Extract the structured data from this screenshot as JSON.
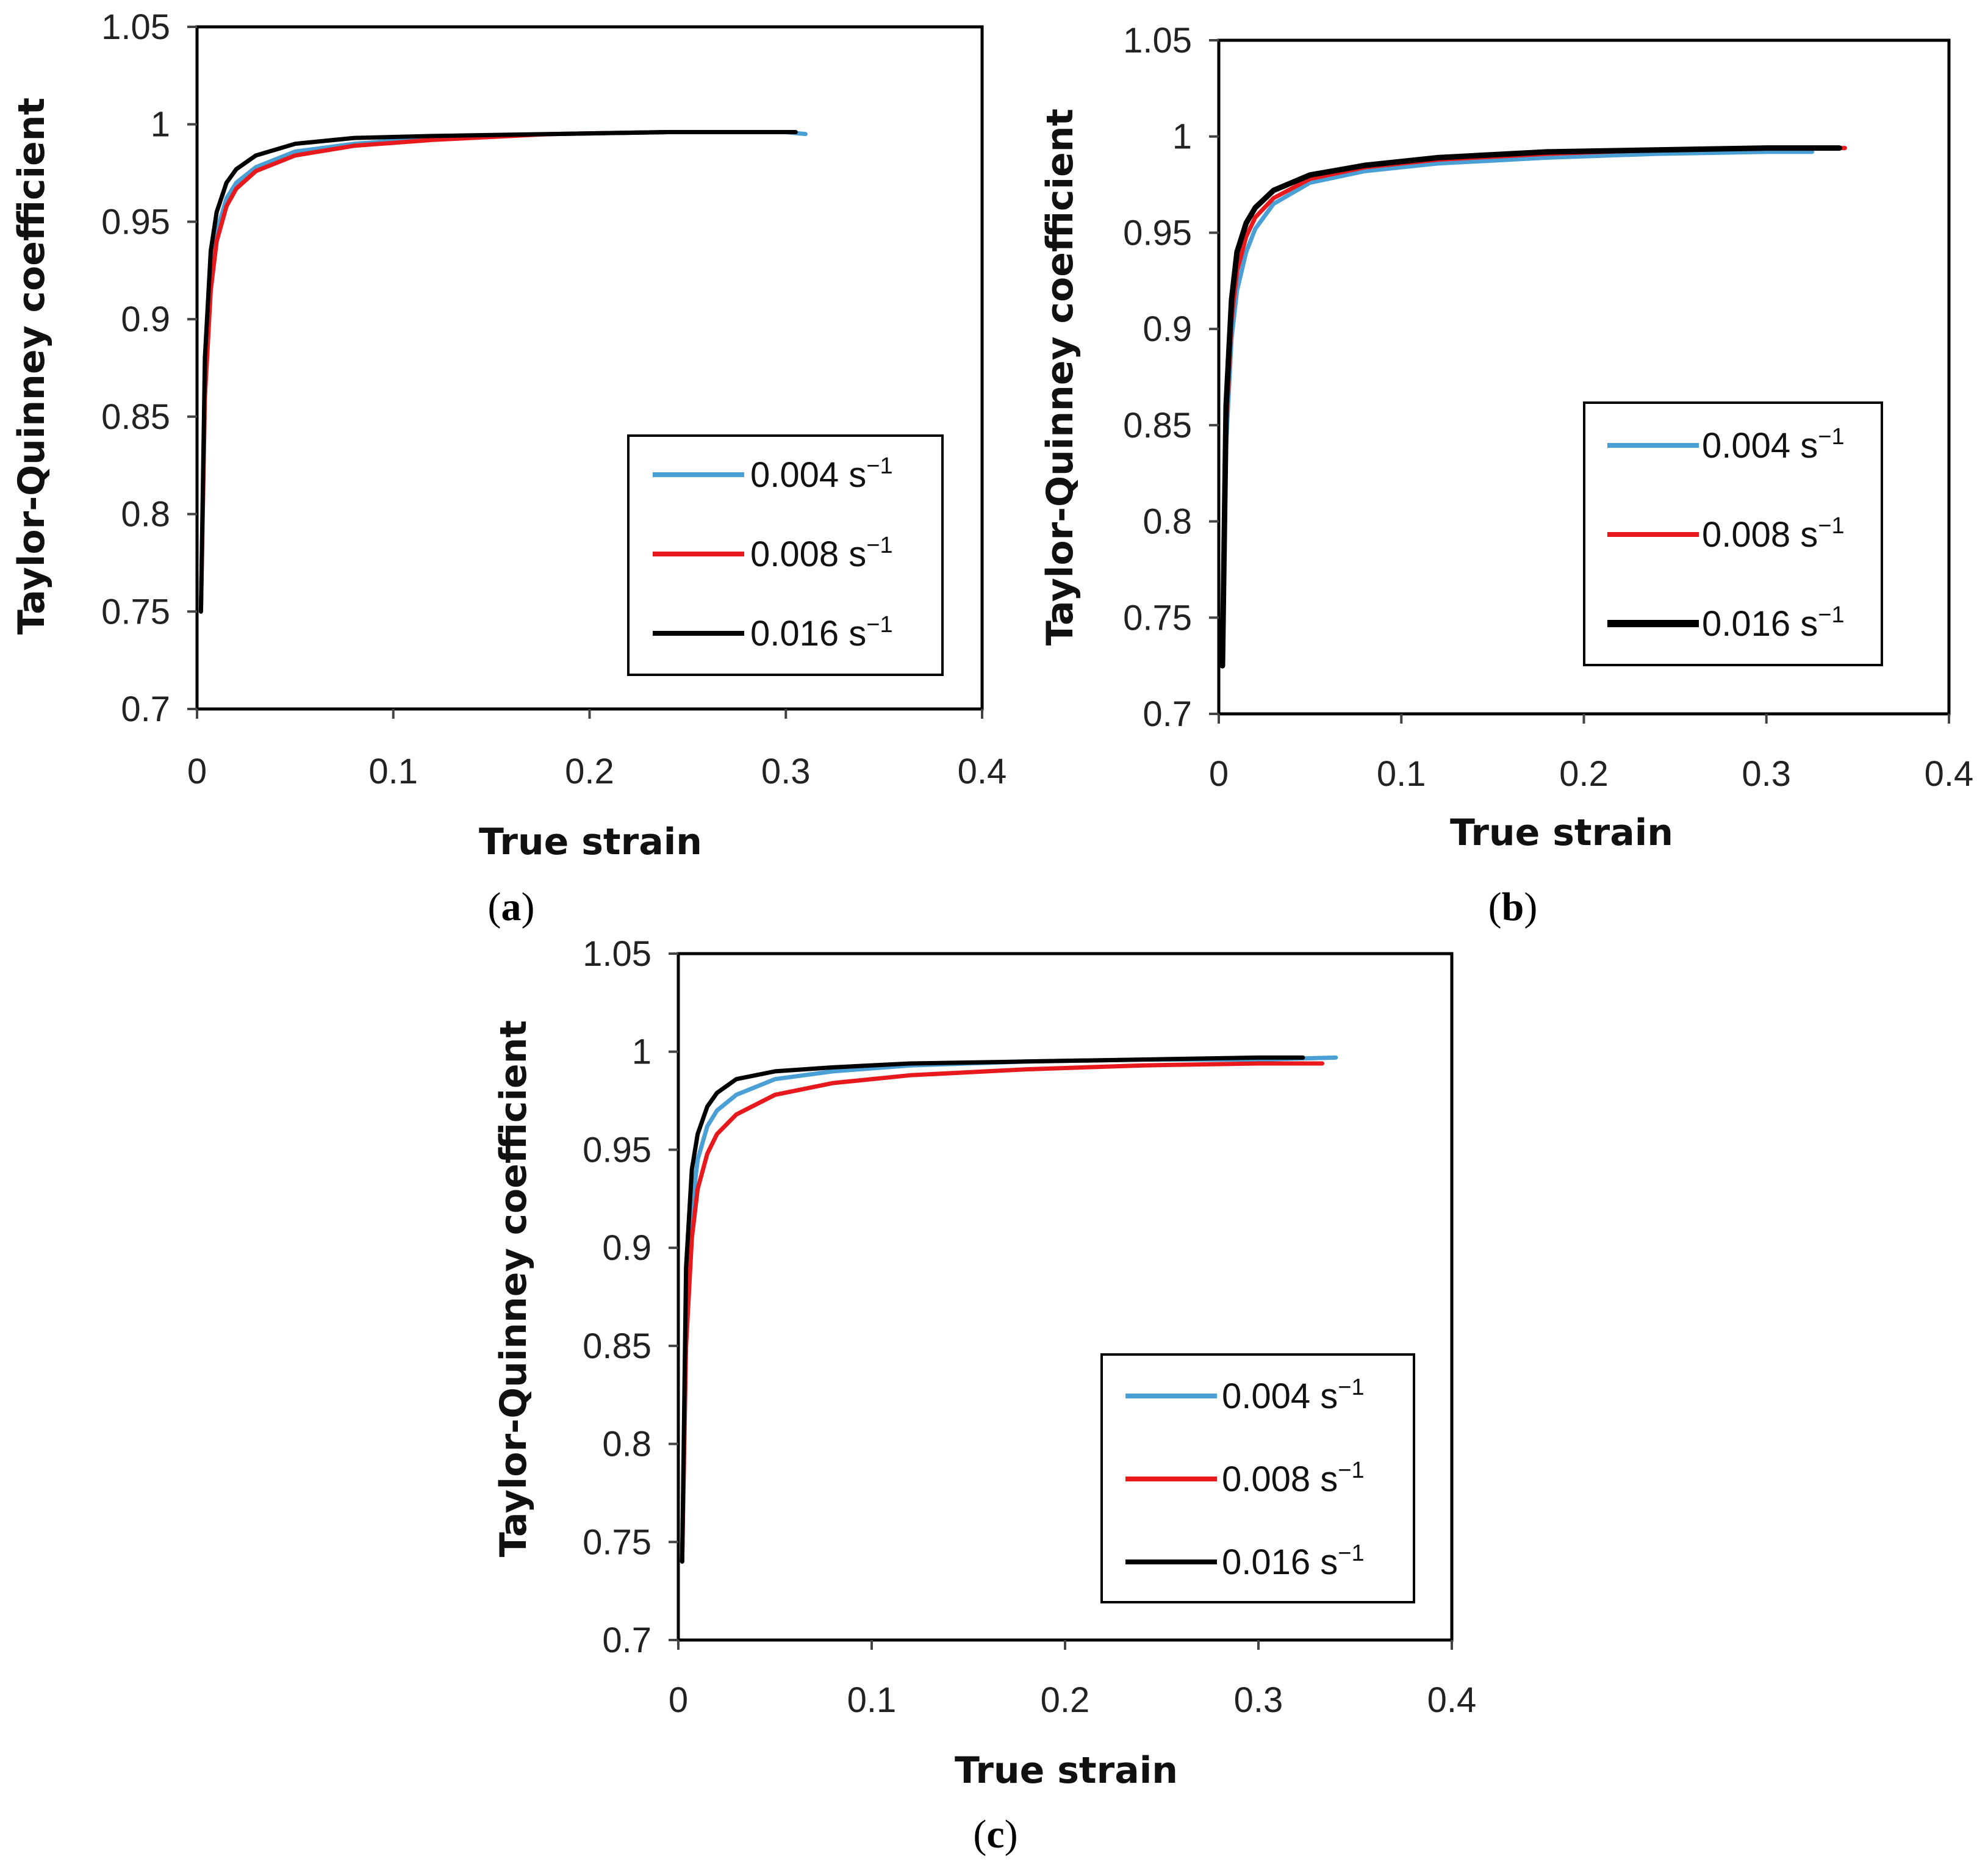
{
  "colors": {
    "0.004": "#4a9fd5",
    "0.008": "#e8191c",
    "0.016": "#000000"
  },
  "chart_data": [
    {
      "panel": "a",
      "type": "line",
      "xlabel": "True strain",
      "ylabel": "Taylor-Quinney coefficient",
      "xlim": [
        0,
        0.4
      ],
      "ylim": [
        0.7,
        1.05
      ],
      "xticks": [
        "0",
        "0.1",
        "0.2",
        "0.3",
        "0.4"
      ],
      "yticks": [
        "0.7",
        "0.75",
        "0.8",
        "0.85",
        "0.9",
        "0.95",
        "1",
        "1.05"
      ],
      "legend": {
        "position": "lower-right"
      },
      "series": [
        {
          "name": "0.004",
          "unit": "s",
          "exp": "−1",
          "color_key": "0.004",
          "x": [
            0.002,
            0.004,
            0.007,
            0.01,
            0.015,
            0.02,
            0.03,
            0.05,
            0.08,
            0.12,
            0.18,
            0.24,
            0.3,
            0.31
          ],
          "y": [
            0.75,
            0.87,
            0.92,
            0.945,
            0.962,
            0.97,
            0.978,
            0.986,
            0.99,
            0.993,
            0.995,
            0.996,
            0.996,
            0.995
          ]
        },
        {
          "name": "0.008",
          "unit": "s",
          "exp": "−1",
          "color_key": "0.008",
          "x": [
            0.002,
            0.004,
            0.007,
            0.01,
            0.015,
            0.02,
            0.03,
            0.05,
            0.08,
            0.12,
            0.18,
            0.24,
            0.3,
            0.305
          ],
          "y": [
            0.75,
            0.86,
            0.915,
            0.94,
            0.958,
            0.967,
            0.976,
            0.984,
            0.989,
            0.992,
            0.995,
            0.996,
            0.996,
            0.996
          ]
        },
        {
          "name": "0.016",
          "unit": "s",
          "exp": "−1",
          "color_key": "0.016",
          "x": [
            0.002,
            0.004,
            0.007,
            0.01,
            0.015,
            0.02,
            0.03,
            0.05,
            0.08,
            0.12,
            0.18,
            0.24,
            0.3,
            0.305
          ],
          "y": [
            0.75,
            0.88,
            0.935,
            0.955,
            0.97,
            0.977,
            0.984,
            0.99,
            0.993,
            0.994,
            0.995,
            0.996,
            0.996,
            0.996
          ]
        }
      ]
    },
    {
      "panel": "b",
      "type": "line",
      "xlabel": "True strain",
      "ylabel": "Taylor-Quinney coefficient",
      "xlim": [
        0,
        0.4
      ],
      "ylim": [
        0.7,
        1.05
      ],
      "xticks": [
        "0",
        "0.1",
        "0.2",
        "0.3",
        "0.4"
      ],
      "yticks": [
        "0.7",
        "0.75",
        "0.8",
        "0.85",
        "0.9",
        "0.95",
        "1",
        "1.05"
      ],
      "legend": {
        "position": "lower-right"
      },
      "series": [
        {
          "name": "0.004",
          "unit": "s",
          "exp": "−1",
          "color_key": "0.004",
          "x": [
            0.002,
            0.004,
            0.007,
            0.01,
            0.015,
            0.02,
            0.03,
            0.05,
            0.08,
            0.12,
            0.18,
            0.24,
            0.3,
            0.325
          ],
          "y": [
            0.725,
            0.84,
            0.895,
            0.92,
            0.94,
            0.952,
            0.965,
            0.976,
            0.982,
            0.986,
            0.989,
            0.991,
            0.992,
            0.992
          ]
        },
        {
          "name": "0.008",
          "unit": "s",
          "exp": "−1",
          "color_key": "0.008",
          "x": [
            0.002,
            0.004,
            0.007,
            0.01,
            0.015,
            0.02,
            0.03,
            0.05,
            0.08,
            0.12,
            0.18,
            0.24,
            0.3,
            0.343
          ],
          "y": [
            0.725,
            0.85,
            0.905,
            0.93,
            0.948,
            0.958,
            0.968,
            0.978,
            0.984,
            0.988,
            0.991,
            0.993,
            0.994,
            0.994
          ]
        },
        {
          "name": "0.016",
          "unit": "s",
          "exp": "−1",
          "color_key": "0.016",
          "x": [
            0.002,
            0.004,
            0.007,
            0.01,
            0.015,
            0.02,
            0.03,
            0.05,
            0.08,
            0.12,
            0.18,
            0.24,
            0.3,
            0.34
          ],
          "y": [
            0.725,
            0.86,
            0.915,
            0.94,
            0.955,
            0.963,
            0.972,
            0.98,
            0.985,
            0.989,
            0.992,
            0.993,
            0.994,
            0.994
          ]
        }
      ]
    },
    {
      "panel": "c",
      "type": "line",
      "xlabel": "True strain",
      "ylabel": "Taylor-Quinney coefficient",
      "xlim": [
        0,
        0.4
      ],
      "ylim": [
        0.7,
        1.05
      ],
      "xticks": [
        "0",
        "0.1",
        "0.2",
        "0.3",
        "0.4"
      ],
      "yticks": [
        "0.7",
        "0.75",
        "0.8",
        "0.85",
        "0.9",
        "0.95",
        "1",
        "1.05"
      ],
      "legend": {
        "position": "lower-right"
      },
      "series": [
        {
          "name": "0.004",
          "unit": "s",
          "exp": "−1",
          "color_key": "0.004",
          "x": [
            0.002,
            0.004,
            0.007,
            0.01,
            0.015,
            0.02,
            0.03,
            0.05,
            0.08,
            0.12,
            0.18,
            0.24,
            0.3,
            0.34
          ],
          "y": [
            0.74,
            0.87,
            0.92,
            0.945,
            0.962,
            0.97,
            0.978,
            0.986,
            0.99,
            0.993,
            0.995,
            0.996,
            0.996,
            0.997
          ]
        },
        {
          "name": "0.008",
          "unit": "s",
          "exp": "−1",
          "color_key": "0.008",
          "x": [
            0.002,
            0.004,
            0.007,
            0.01,
            0.015,
            0.02,
            0.03,
            0.05,
            0.08,
            0.12,
            0.18,
            0.24,
            0.3,
            0.333
          ],
          "y": [
            0.74,
            0.85,
            0.905,
            0.93,
            0.948,
            0.958,
            0.968,
            0.978,
            0.984,
            0.988,
            0.991,
            0.993,
            0.994,
            0.994
          ]
        },
        {
          "name": "0.016",
          "unit": "s",
          "exp": "−1",
          "color_key": "0.016",
          "x": [
            0.002,
            0.004,
            0.007,
            0.01,
            0.015,
            0.02,
            0.03,
            0.05,
            0.08,
            0.12,
            0.18,
            0.24,
            0.3,
            0.323
          ],
          "y": [
            0.74,
            0.89,
            0.94,
            0.958,
            0.972,
            0.979,
            0.986,
            0.99,
            0.992,
            0.994,
            0.995,
            0.996,
            0.997,
            0.997
          ]
        }
      ]
    }
  ]
}
